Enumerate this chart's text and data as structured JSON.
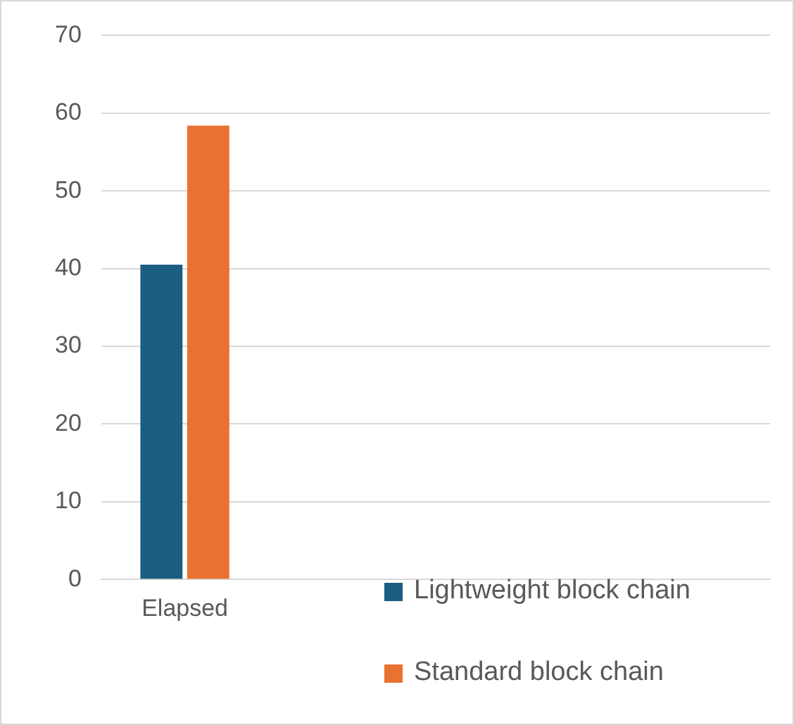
{
  "chart_data": {
    "type": "bar",
    "categories": [
      "Elapsed",
      null,
      null,
      null
    ],
    "series": [
      {
        "name": "Lightweight block chain",
        "color": "#1b5e82",
        "values": [
          40.5,
          null,
          null,
          null
        ]
      },
      {
        "name": "Standard block chain",
        "color": "#e97132",
        "values": [
          58.4,
          null,
          null,
          null
        ]
      }
    ],
    "ylim": [
      0,
      70
    ],
    "yticks": [
      0,
      10,
      20,
      30,
      40,
      50,
      60,
      70
    ],
    "grid": "y",
    "legend": "bottom right"
  }
}
